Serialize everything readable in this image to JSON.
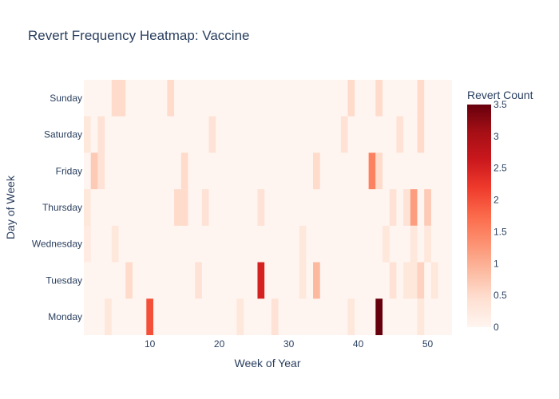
{
  "chart_data": {
    "type": "heatmap",
    "title": "Revert Frequency Heatmap: Vaccine",
    "xlabel": "Week of Year",
    "ylabel": "Day of Week",
    "x_range": [
      0.5,
      53.5
    ],
    "x_ticks": [
      10,
      20,
      30,
      40,
      50
    ],
    "y_categories": [
      "Monday",
      "Tuesday",
      "Wednesday",
      "Thursday",
      "Friday",
      "Saturday",
      "Sunday"
    ],
    "colorbar": {
      "title": "Revert Count",
      "range": [
        0,
        3.5
      ],
      "ticks": [
        0,
        0.5,
        1,
        1.5,
        2,
        2.5,
        3,
        3.5
      ],
      "colorscale": [
        [
          0.0,
          "#fff5f0"
        ],
        [
          0.125,
          "#fee0d2"
        ],
        [
          0.25,
          "#fcbba1"
        ],
        [
          0.375,
          "#fc9272"
        ],
        [
          0.5,
          "#fb6a4a"
        ],
        [
          0.625,
          "#ef3b2c"
        ],
        [
          0.75,
          "#cb181d"
        ],
        [
          0.875,
          "#a50f15"
        ],
        [
          1.0,
          "#67000d"
        ]
      ]
    },
    "nonzero_cells": [
      {
        "day": "Sunday",
        "week": 5,
        "value": 0.5
      },
      {
        "day": "Sunday",
        "week": 6,
        "value": 0.5
      },
      {
        "day": "Sunday",
        "week": 13,
        "value": 0.5
      },
      {
        "day": "Sunday",
        "week": 39,
        "value": 0.5
      },
      {
        "day": "Sunday",
        "week": 43,
        "value": 0.5
      },
      {
        "day": "Sunday",
        "week": 49,
        "value": 0.5
      },
      {
        "day": "Saturday",
        "week": 1,
        "value": 0.3
      },
      {
        "day": "Saturday",
        "week": 3,
        "value": 0.4
      },
      {
        "day": "Saturday",
        "week": 19,
        "value": 0.4
      },
      {
        "day": "Saturday",
        "week": 38,
        "value": 0.4
      },
      {
        "day": "Saturday",
        "week": 46,
        "value": 0.4
      },
      {
        "day": "Saturday",
        "week": 49,
        "value": 0.5
      },
      {
        "day": "Friday",
        "week": 2,
        "value": 0.7
      },
      {
        "day": "Friday",
        "week": 3,
        "value": 0.4
      },
      {
        "day": "Friday",
        "week": 15,
        "value": 0.5
      },
      {
        "day": "Friday",
        "week": 34,
        "value": 0.5
      },
      {
        "day": "Friday",
        "week": 42,
        "value": 1.5
      },
      {
        "day": "Friday",
        "week": 43,
        "value": 0.5
      },
      {
        "day": "Thursday",
        "week": 1,
        "value": 0.3
      },
      {
        "day": "Thursday",
        "week": 14,
        "value": 0.5
      },
      {
        "day": "Thursday",
        "week": 15,
        "value": 0.5
      },
      {
        "day": "Thursday",
        "week": 18,
        "value": 0.4
      },
      {
        "day": "Thursday",
        "week": 26,
        "value": 0.4
      },
      {
        "day": "Thursday",
        "week": 45,
        "value": 0.4
      },
      {
        "day": "Thursday",
        "week": 47,
        "value": 0.4
      },
      {
        "day": "Thursday",
        "week": 48,
        "value": 1.2
      },
      {
        "day": "Thursday",
        "week": 50,
        "value": 0.7
      },
      {
        "day": "Wednesday",
        "week": 1,
        "value": 0.2
      },
      {
        "day": "Wednesday",
        "week": 5,
        "value": 0.3
      },
      {
        "day": "Wednesday",
        "week": 32,
        "value": 0.3
      },
      {
        "day": "Wednesday",
        "week": 44,
        "value": 0.3
      },
      {
        "day": "Wednesday",
        "week": 48,
        "value": 0.3
      },
      {
        "day": "Wednesday",
        "week": 50,
        "value": 0.3
      },
      {
        "day": "Tuesday",
        "week": 7,
        "value": 0.5
      },
      {
        "day": "Tuesday",
        "week": 17,
        "value": 0.4
      },
      {
        "day": "Tuesday",
        "week": 26,
        "value": 2.5
      },
      {
        "day": "Tuesday",
        "week": 32,
        "value": 0.3
      },
      {
        "day": "Tuesday",
        "week": 34,
        "value": 0.9
      },
      {
        "day": "Tuesday",
        "week": 45,
        "value": 0.4
      },
      {
        "day": "Tuesday",
        "week": 47,
        "value": 0.3
      },
      {
        "day": "Tuesday",
        "week": 48,
        "value": 0.3
      },
      {
        "day": "Tuesday",
        "week": 49,
        "value": 0.6
      },
      {
        "day": "Tuesday",
        "week": 51,
        "value": 0.3
      },
      {
        "day": "Monday",
        "week": 4,
        "value": 0.3
      },
      {
        "day": "Monday",
        "week": 10,
        "value": 2.0
      },
      {
        "day": "Monday",
        "week": 23,
        "value": 0.3
      },
      {
        "day": "Monday",
        "week": 28,
        "value": 0.4
      },
      {
        "day": "Monday",
        "week": 39,
        "value": 0.3
      },
      {
        "day": "Monday",
        "week": 43,
        "value": 3.5
      },
      {
        "day": "Monday",
        "week": 49,
        "value": 0.3
      }
    ]
  }
}
